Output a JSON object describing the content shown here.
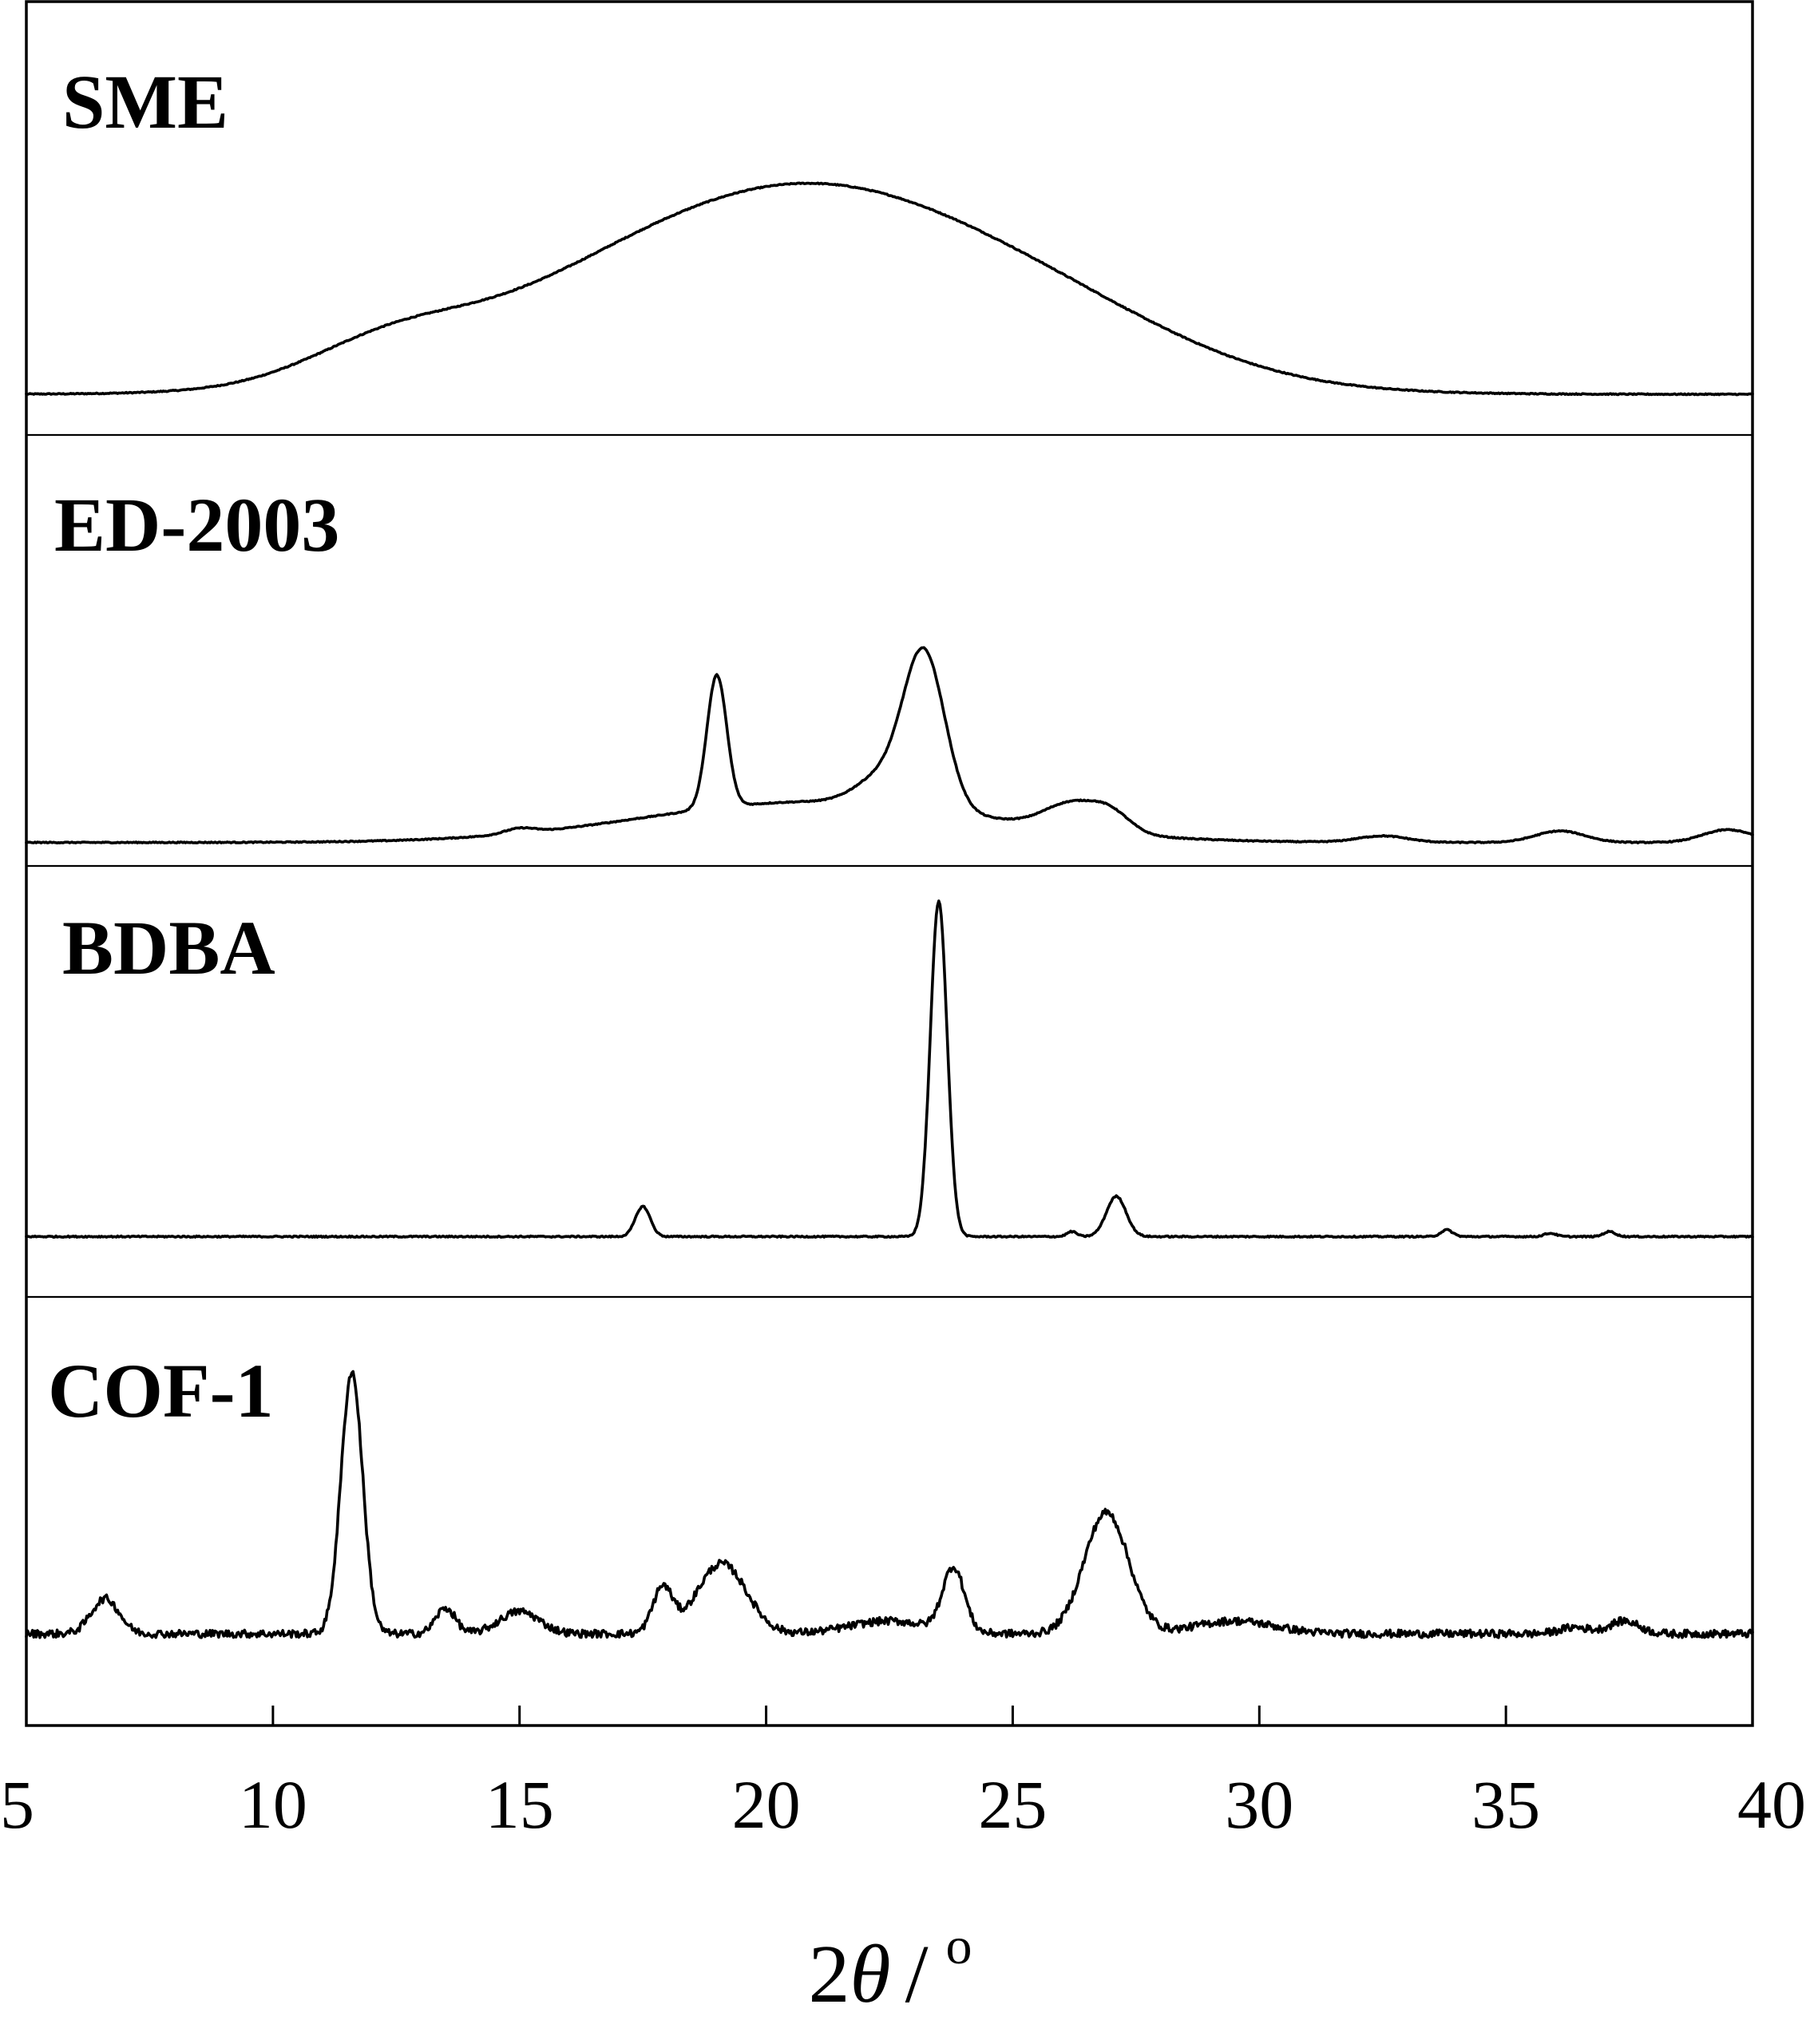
{
  "chart_data": {
    "type": "line",
    "title": "",
    "xlabel": "2θ / °",
    "xlabel_parts": {
      "number": "2",
      "symbol": "θ",
      "slash": "/",
      "unit": "o"
    },
    "ylabel": "",
    "xlim": [
      5,
      40
    ],
    "xticks": [
      5,
      10,
      15,
      20,
      25,
      30,
      35,
      40
    ],
    "xtick_labels": [
      "5",
      "10",
      "15",
      "20",
      "25",
      "30",
      "35",
      "40"
    ],
    "layout": "stacked panels, no y-axis ticks",
    "grid": false,
    "legend": "none (panel labels top-left)",
    "series": [
      {
        "name": "SME",
        "baseline": 0.05,
        "noise": 0.002,
        "peaks": [
          {
            "center": 21.0,
            "height": 0.8,
            "width": 4.2
          },
          {
            "center": 12.3,
            "height": 0.12,
            "width": 1.6
          },
          {
            "center": 15.5,
            "height": 0.1,
            "width": 3.0
          },
          {
            "center": 26.5,
            "height": 0.08,
            "width": 2.5
          }
        ]
      },
      {
        "name": "ED-2003",
        "baseline": 0.02,
        "noise": 0.002,
        "peaks": [
          {
            "center": 19.0,
            "height": 0.52,
            "width": 0.2
          },
          {
            "center": 23.2,
            "height": 0.61,
            "width": 0.42
          },
          {
            "center": 21.0,
            "height": 0.16,
            "width": 3.5
          },
          {
            "center": 22.3,
            "height": 0.1,
            "width": 0.5
          },
          {
            "center": 26.2,
            "height": 0.1,
            "width": 0.55
          },
          {
            "center": 27.0,
            "height": 0.07,
            "width": 0.4
          },
          {
            "center": 15.0,
            "height": 0.02,
            "width": 0.3
          },
          {
            "center": 32.5,
            "height": 0.025,
            "width": 0.5
          },
          {
            "center": 36.1,
            "height": 0.045,
            "width": 0.5
          },
          {
            "center": 39.5,
            "height": 0.05,
            "width": 0.5
          }
        ]
      },
      {
        "name": "BDBA",
        "baseline": 0.03,
        "noise": 0.002,
        "peaks": [
          {
            "center": 17.5,
            "height": 0.09,
            "width": 0.15
          },
          {
            "center": 23.5,
            "height": 1.0,
            "width": 0.17
          },
          {
            "center": 27.1,
            "height": 0.12,
            "width": 0.2
          },
          {
            "center": 26.2,
            "height": 0.015,
            "width": 0.1
          },
          {
            "center": 33.8,
            "height": 0.02,
            "width": 0.12
          },
          {
            "center": 35.9,
            "height": 0.01,
            "width": 0.12
          },
          {
            "center": 37.1,
            "height": 0.015,
            "width": 0.12
          }
        ]
      },
      {
        "name": "COF-1",
        "baseline": 0.12,
        "noise": 0.012,
        "peaks": [
          {
            "center": 6.6,
            "height": 0.11,
            "width": 0.28
          },
          {
            "center": 11.6,
            "height": 0.82,
            "width": 0.22
          },
          {
            "center": 13.5,
            "height": 0.08,
            "width": 0.2
          },
          {
            "center": 15.0,
            "height": 0.07,
            "width": 0.4
          },
          {
            "center": 17.9,
            "height": 0.14,
            "width": 0.2
          },
          {
            "center": 19.1,
            "height": 0.22,
            "width": 0.5
          },
          {
            "center": 22.5,
            "height": 0.04,
            "width": 0.8
          },
          {
            "center": 23.8,
            "height": 0.2,
            "width": 0.22
          },
          {
            "center": 26.9,
            "height": 0.38,
            "width": 0.45
          },
          {
            "center": 29.5,
            "height": 0.04,
            "width": 0.8
          },
          {
            "center": 36.4,
            "height": 0.02,
            "width": 0.3
          },
          {
            "center": 37.4,
            "height": 0.04,
            "width": 0.3
          }
        ]
      }
    ]
  }
}
